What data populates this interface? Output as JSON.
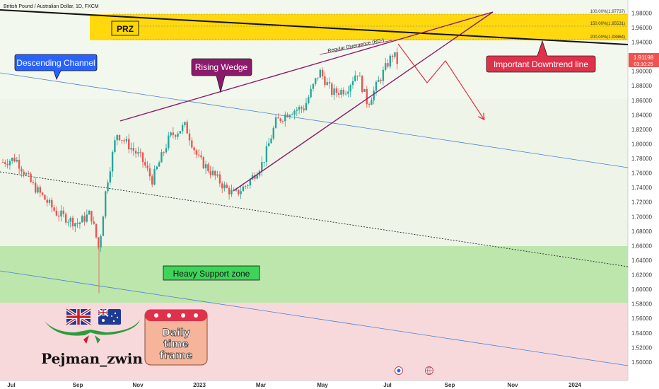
{
  "header": {
    "title": "British Pound / Australian Dollar, 1D, FXCM"
  },
  "colors": {
    "bull": "#26a69a",
    "bear": "#ef5350",
    "wedge": "#8b1a6b",
    "channel": "#4a7fd4",
    "downtrend": "#111111",
    "prz_fill": "#ffd600",
    "support_fill": "#b6e3a4",
    "resist_fill": "#f6d3d6",
    "mid_fill": "#eef3e4"
  },
  "labels": {
    "prz": "PRZ",
    "descending_channel": "Descending Channel",
    "rising_wedge": "Rising Wedge",
    "downtrend": "Important Downtrend line",
    "support": "Heavy Support zone",
    "divergence": "Regular Divergence (RD-)"
  },
  "fib_levels": [
    {
      "label": "100.00%(1.97737)"
    },
    {
      "label": "150.00%(1.95531)"
    },
    {
      "label": "200.00%(1.93864)"
    }
  ],
  "price_tag": {
    "price": "1.91198",
    "countdown": "03:10:25"
  },
  "branding": {
    "author": "Pejman_zwin",
    "timeframe_line1": "Daily",
    "timeframe_line2": "time",
    "timeframe_line3": "frame"
  },
  "chart_data": {
    "type": "candlestick",
    "title": "British Pound / Australian Dollar, 1D, FXCM",
    "x_ticks": [
      "Jul",
      "Sep",
      "Nov",
      "2023",
      "Mar",
      "May",
      "Jul",
      "Sep",
      "Nov",
      "2024"
    ],
    "y_ticks": [
      "1.98000",
      "1.96000",
      "1.94000",
      "1.92000",
      "1.90000",
      "1.88000",
      "1.86000",
      "1.84000",
      "1.82000",
      "1.80000",
      "1.78000",
      "1.76000",
      "1.74000",
      "1.72000",
      "1.70000",
      "1.68000",
      "1.66000",
      "1.64000",
      "1.62000",
      "1.60000",
      "1.58000",
      "1.56000",
      "1.54000",
      "1.52000",
      "1.50000"
    ],
    "ylim": [
      1.496,
      1.996
    ],
    "last_price": 1.91198,
    "key_swings": [
      {
        "date": "Jul 2022",
        "price": 1.775
      },
      {
        "date": "late Aug 2022",
        "price": 1.695
      },
      {
        "date": "late Sep 2022",
        "price": 1.595
      },
      {
        "date": "mid Oct 2022",
        "price": 1.82
      },
      {
        "date": "early Dec 2022",
        "price": 1.825
      },
      {
        "date": "early Feb 2023",
        "price": 1.725
      },
      {
        "date": "late Apr 2023",
        "price": 1.9
      },
      {
        "date": "early Jun 2023",
        "price": 1.85
      },
      {
        "date": "mid Jul 2023",
        "price": 1.938
      }
    ]
  },
  "footer_icons": [
    "replay-icon",
    "globe-icon"
  ]
}
